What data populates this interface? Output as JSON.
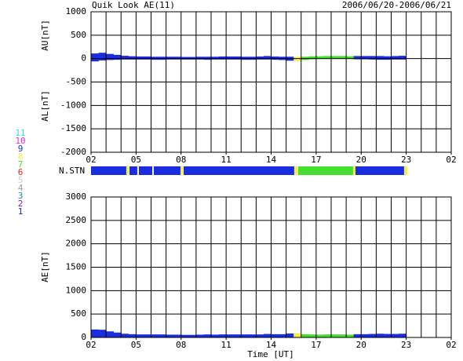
{
  "chart_data": [
    {
      "type": "range",
      "title": "Quik Look AE(11)",
      "subtitle": "2006/06/20-2006/06/21",
      "ylabel_upper": "AU[nT]",
      "ylabel_lower": "AL[nT]",
      "x": [
        2.25,
        2.75,
        3.25,
        3.75,
        4.25,
        4.75,
        5.25,
        5.75,
        6.25,
        6.75,
        7.25,
        7.75,
        8.25,
        8.75,
        9.25,
        9.75,
        10.25,
        10.75,
        11.25,
        11.75,
        12.25,
        12.75,
        13.25,
        13.75,
        14.25,
        14.75,
        15.25,
        15.75,
        16.25,
        16.75,
        17.25,
        17.75,
        18.25,
        18.75,
        19.25,
        19.75,
        20.25,
        20.75,
        21.25,
        21.75,
        22.25,
        22.75
      ],
      "high": [
        110,
        125,
        100,
        80,
        60,
        50,
        45,
        45,
        40,
        40,
        40,
        40,
        35,
        35,
        40,
        40,
        40,
        45,
        45,
        45,
        40,
        40,
        45,
        55,
        45,
        40,
        40,
        35,
        40,
        50,
        50,
        55,
        55,
        55,
        50,
        55,
        55,
        55,
        55,
        50,
        55,
        60
      ],
      "low": [
        -60,
        -40,
        -30,
        -25,
        -20,
        -20,
        -20,
        -20,
        -25,
        -25,
        -20,
        -20,
        -20,
        -20,
        -20,
        -25,
        -20,
        -20,
        -20,
        -20,
        -25,
        -25,
        -20,
        -20,
        -25,
        -30,
        -45,
        -50,
        -30,
        -15,
        -10,
        -10,
        -10,
        -10,
        -10,
        -15,
        -15,
        -20,
        -25,
        -25,
        -20,
        -20
      ],
      "xlim": [
        2,
        26
      ],
      "xticks": [
        {
          "value": 2,
          "label": "02"
        },
        {
          "value": 5,
          "label": "05"
        },
        {
          "value": 8,
          "label": "08"
        },
        11,
        14,
        17,
        20,
        23,
        {
          "value": 26,
          "label": "02"
        }
      ],
      "ylim": [
        -2000,
        1000
      ],
      "yticks": [
        1000,
        500,
        0,
        -500,
        -1000,
        -1500,
        -2000
      ],
      "grid": true
    },
    {
      "type": "stations",
      "label": "N.STN",
      "xlim": [
        2,
        26
      ],
      "segments": [
        {
          "start": 2,
          "end": 4.35,
          "count": 9
        },
        {
          "start": 4.35,
          "end": 4.51,
          "count": 8
        },
        {
          "start": 4.56,
          "end": 5.08,
          "count": 9
        },
        {
          "start": 5.19,
          "end": 6.08,
          "count": 9
        },
        {
          "start": 6.18,
          "end": 7.96,
          "count": 9
        },
        {
          "start": 7.96,
          "end": 8.12,
          "count": 8
        },
        {
          "start": 8.17,
          "end": 15.54,
          "count": 9
        },
        {
          "start": 15.54,
          "end": 15.75,
          "count": 8
        },
        {
          "start": 15.8,
          "end": 19.46,
          "count": 7
        },
        {
          "start": 19.46,
          "end": 19.62,
          "count": 8
        },
        {
          "start": 19.62,
          "end": 22.86,
          "count": 9
        },
        {
          "start": 22.86,
          "end": 23.07,
          "count": 8
        }
      ],
      "levels": [
        11,
        10,
        9,
        8,
        7,
        6,
        5,
        4,
        3,
        2,
        1
      ],
      "level_colors": [
        "#22dddd",
        "#ee22ee",
        "#1a2ee0",
        "#f2f040",
        "#44e030",
        "#ee2222",
        "#cccccc",
        "#999999",
        "#119999",
        "#991199",
        "#2222cc"
      ]
    },
    {
      "type": "area",
      "ylabel": "AE[nT]",
      "xlabel": "Time [UT]",
      "x": [
        2.25,
        2.75,
        3.25,
        3.75,
        4.25,
        4.75,
        5.25,
        5.75,
        6.25,
        6.75,
        7.25,
        7.75,
        8.25,
        8.75,
        9.25,
        9.75,
        10.25,
        10.75,
        11.25,
        11.75,
        12.25,
        12.75,
        13.25,
        13.75,
        14.25,
        14.75,
        15.25,
        15.75,
        16.25,
        16.75,
        17.25,
        17.75,
        18.25,
        18.75,
        19.25,
        19.75,
        20.25,
        20.75,
        21.25,
        21.75,
        22.25,
        22.75
      ],
      "values": [
        170,
        165,
        130,
        105,
        80,
        70,
        65,
        65,
        65,
        65,
        60,
        60,
        55,
        55,
        60,
        65,
        60,
        65,
        65,
        65,
        65,
        65,
        65,
        75,
        70,
        70,
        85,
        85,
        70,
        65,
        60,
        65,
        65,
        65,
        60,
        70,
        70,
        75,
        80,
        75,
        75,
        80
      ],
      "xlim": [
        2,
        26
      ],
      "xticks": [
        {
          "value": 2,
          "label": "02"
        },
        {
          "value": 5,
          "label": "05"
        },
        {
          "value": 8,
          "label": "08"
        },
        11,
        14,
        17,
        20,
        23,
        {
          "value": 26,
          "label": "02"
        }
      ],
      "ylim": [
        0,
        3000
      ],
      "yticks": [
        3000,
        2500,
        2000,
        1500,
        1000,
        500,
        0
      ],
      "grid": true
    }
  ]
}
